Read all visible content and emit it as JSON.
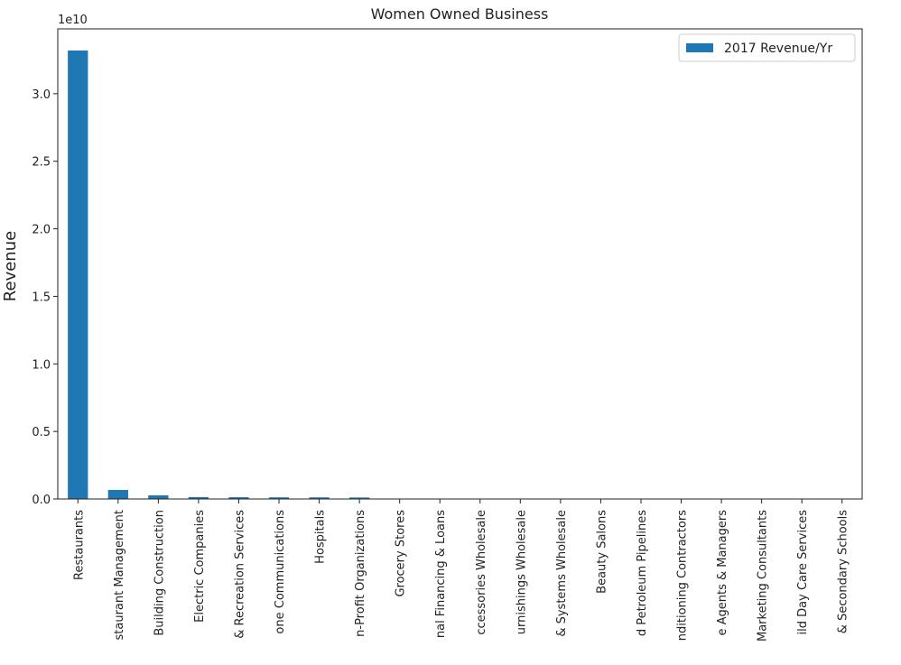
{
  "chart_data": {
    "type": "bar",
    "title": "Women Owned Business",
    "y_label": "Revenue",
    "y_offset_label": "1e10",
    "categories": [
      "Restaurants",
      "staurant Management",
      "Building Construction",
      "Electric Companies",
      "& Recreation Services",
      "one Communications",
      "Hospitals",
      "n-Profit Organizations",
      "Grocery Stores",
      "nal Financing & Loans",
      "ccessories Wholesale",
      "urnishings Wholesale",
      "& Systems Wholesale",
      "Beauty Salons",
      "d Petroleum Pipelines",
      "nditioning Contractors",
      "e Agents & Managers",
      "Marketing Consultants",
      "ild Day Care Services",
      "& Secondary Schools"
    ],
    "series": [
      {
        "name": "2017 Revenue/Yr",
        "color": "#1f77b4",
        "values": [
          33200000000,
          670000000,
          270000000,
          140000000,
          130000000,
          120000000,
          120000000,
          110000000,
          20000000,
          15000000,
          12000000,
          10000000,
          9000000,
          8000000,
          7000000,
          6000000,
          5000000,
          4000000,
          3000000,
          2000000
        ]
      }
    ],
    "ylim": [
      0,
      34800000000
    ],
    "yticks": [
      {
        "value": 0,
        "label": "0.0"
      },
      {
        "value": 5000000000,
        "label": "0.5"
      },
      {
        "value": 10000000000,
        "label": "1.0"
      },
      {
        "value": 15000000000,
        "label": "1.5"
      },
      {
        "value": 20000000000,
        "label": "2.0"
      },
      {
        "value": 25000000000,
        "label": "2.5"
      },
      {
        "value": 30000000000,
        "label": "3.0"
      }
    ],
    "legend": "upper right"
  }
}
